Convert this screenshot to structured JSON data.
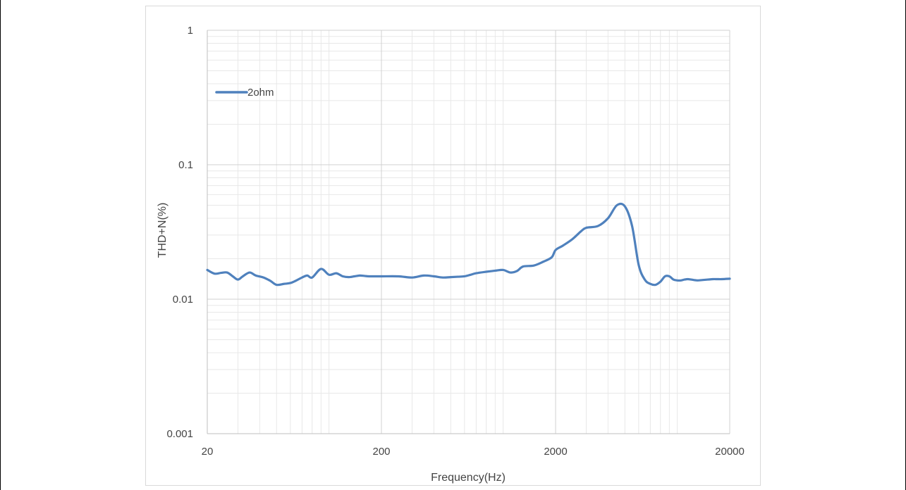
{
  "chart_data": {
    "type": "line",
    "xlabel": "Frequency(Hz)",
    "ylabel": "THD+N(%)",
    "x_scale": "log",
    "y_scale": "log",
    "xlim": [
      20,
      20000
    ],
    "ylim": [
      0.001,
      1
    ],
    "x_ticks": [
      "20",
      "200",
      "2000",
      "20000"
    ],
    "y_ticks": [
      "1",
      "0.1",
      "0.01",
      "0.001"
    ],
    "grid": true,
    "legend_position": "top-left",
    "series": [
      {
        "name": "2ohm",
        "color": "#4f81bd",
        "x": [
          20,
          22,
          24,
          26,
          28,
          30,
          32,
          35,
          38,
          42,
          46,
          50,
          55,
          60,
          65,
          70,
          75,
          80,
          90,
          100,
          110,
          120,
          130,
          140,
          150,
          160,
          170,
          200,
          250,
          300,
          350,
          400,
          450,
          500,
          550,
          600,
          650,
          700,
          800,
          900,
          1000,
          1100,
          1200,
          1300,
          1500,
          1700,
          1900,
          2000,
          2200,
          2500,
          2800,
          3000,
          3500,
          4000,
          4500,
          5000,
          5500,
          6000,
          6500,
          7000,
          7500,
          8000,
          8500,
          9000,
          9500,
          10000,
          10500,
          11000,
          11500,
          12000,
          13000,
          14000,
          15000,
          16000,
          17000,
          18000,
          20000
        ],
        "y": [
          0.0165,
          0.0155,
          0.0157,
          0.0158,
          0.0148,
          0.014,
          0.0148,
          0.0158,
          0.015,
          0.0145,
          0.0137,
          0.0128,
          0.013,
          0.0132,
          0.0138,
          0.0145,
          0.015,
          0.0145,
          0.0168,
          0.0152,
          0.0156,
          0.0148,
          0.0146,
          0.0148,
          0.015,
          0.0149,
          0.0148,
          0.0148,
          0.0148,
          0.0145,
          0.015,
          0.0148,
          0.0145,
          0.0146,
          0.0147,
          0.0148,
          0.0152,
          0.0156,
          0.016,
          0.0163,
          0.0165,
          0.0158,
          0.0162,
          0.0175,
          0.0178,
          0.019,
          0.0205,
          0.0232,
          0.025,
          0.028,
          0.032,
          0.034,
          0.035,
          0.04,
          0.05,
          0.049,
          0.035,
          0.018,
          0.014,
          0.013,
          0.0128,
          0.0135,
          0.0148,
          0.0148,
          0.014,
          0.0138,
          0.0138,
          0.014,
          0.0141,
          0.014,
          0.0138,
          0.0139,
          0.014,
          0.0141,
          0.0141,
          0.0141,
          0.0142
        ]
      }
    ]
  }
}
